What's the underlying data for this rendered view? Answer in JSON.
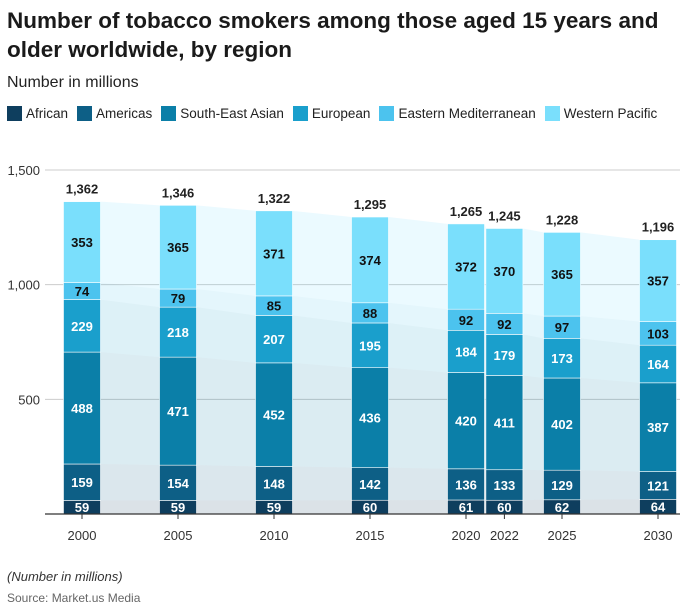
{
  "chart_data": {
    "type": "bar",
    "stacked": true,
    "title": "Number of tobacco smokers among those aged 15 years and older worldwide, by region",
    "subtitle": "Number in millions",
    "categories": [
      "2000",
      "2005",
      "2010",
      "2015",
      "2020",
      "2022",
      "2025",
      "2030"
    ],
    "x_numeric": [
      2000,
      2005,
      2010,
      2015,
      2020,
      2022,
      2025,
      2030
    ],
    "series": [
      {
        "name": "African",
        "color": "#0e3e5e",
        "values": [
          59,
          59,
          59,
          60,
          61,
          60,
          62,
          64
        ]
      },
      {
        "name": "Americas",
        "color": "#0d5f86",
        "values": [
          159,
          154,
          148,
          142,
          136,
          133,
          129,
          121
        ]
      },
      {
        "name": "South-East Asian",
        "color": "#0b7fa8",
        "values": [
          488,
          471,
          452,
          436,
          420,
          411,
          402,
          387
        ]
      },
      {
        "name": "European",
        "color": "#1a9fcc",
        "values": [
          229,
          218,
          207,
          195,
          184,
          179,
          173,
          164
        ]
      },
      {
        "name": "Eastern Mediterranean",
        "color": "#4cc3ee",
        "values": [
          74,
          79,
          85,
          88,
          92,
          92,
          97,
          103
        ]
      },
      {
        "name": "Western Pacific",
        "color": "#7adffc",
        "values": [
          353,
          365,
          371,
          374,
          372,
          370,
          365,
          357
        ]
      }
    ],
    "totals": [
      "1,362",
      "1,346",
      "1,322",
      "1,295",
      "1,265",
      "1,245",
      "1,228",
      "1,196"
    ],
    "ylim": [
      0,
      1500
    ],
    "yticks": [
      "500",
      "1,000",
      "1,500"
    ],
    "ytick_values": [
      500,
      1000,
      1500
    ],
    "grid": true,
    "legend_position": "top",
    "xlabel": "",
    "ylabel": ""
  },
  "note": "(Number in millions)",
  "source": "Source: Market.us Media"
}
